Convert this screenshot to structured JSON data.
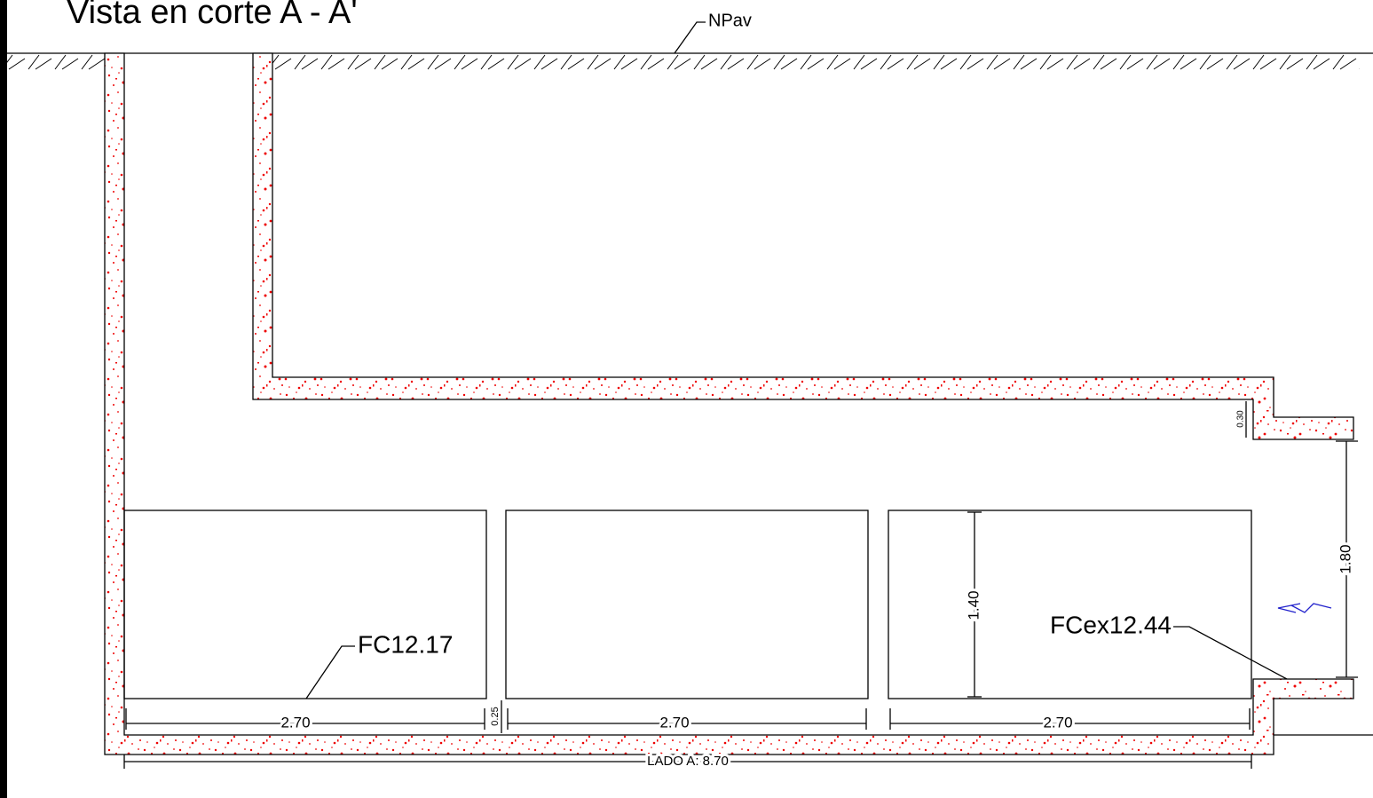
{
  "title": "Vista en corte A - A'",
  "labels": {
    "npav": "NPav",
    "fc": "FC12.17",
    "fcex": "FCex12.44"
  },
  "dimensions": {
    "slab_step": "0.30",
    "opening": "1.80",
    "box_height": "1.40",
    "box_widths": [
      "2.70",
      "2.70",
      "2.70"
    ],
    "gap": "0.25",
    "lado_a": "LADO A: 8.70"
  }
}
